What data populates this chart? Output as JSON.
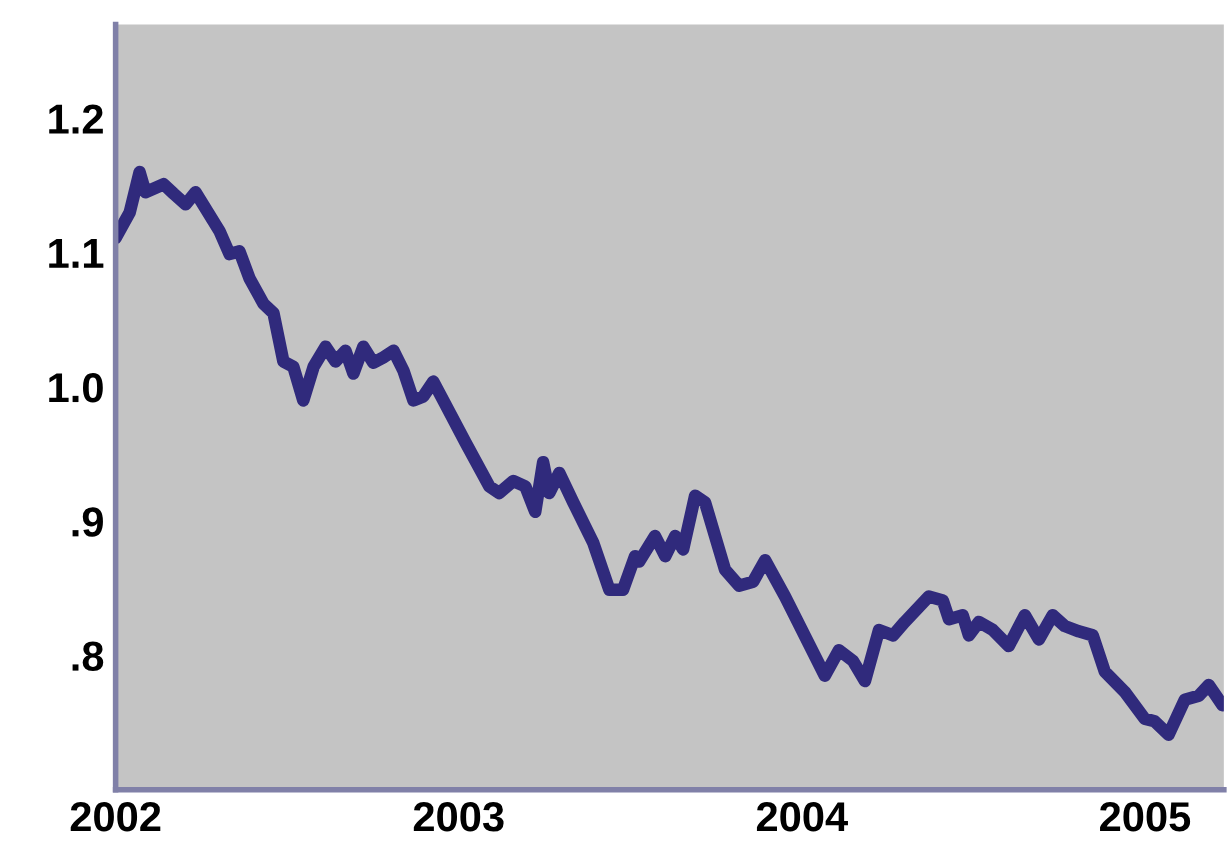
{
  "chart_data": {
    "type": "line",
    "x": [
      2002.0,
      2002.041,
      2002.07,
      2002.087,
      2002.14,
      2002.169,
      2002.204,
      2002.233,
      2002.303,
      2002.332,
      2002.361,
      2002.39,
      2002.431,
      2002.46,
      2002.489,
      2002.518,
      2002.547,
      2002.577,
      2002.612,
      2002.641,
      2002.67,
      2002.693,
      2002.722,
      2002.751,
      2002.78,
      2002.81,
      2002.839,
      2002.868,
      2002.897,
      2002.926,
      2002.955,
      2003.019,
      2003.089,
      2003.118,
      2003.159,
      2003.194,
      2003.223,
      2003.246,
      2003.264,
      2003.293,
      2003.334,
      2003.392,
      2003.439,
      2003.479,
      2003.514,
      2003.526,
      2003.572,
      2003.602,
      2003.631,
      2003.654,
      2003.689,
      2003.718,
      2003.776,
      2003.817,
      2003.858,
      2003.893,
      2003.951,
      2004.067,
      2004.108,
      2004.149,
      2004.184,
      2004.225,
      2004.266,
      2004.3,
      2004.37,
      2004.411,
      2004.429,
      2004.469,
      2004.487,
      2004.516,
      2004.557,
      2004.603,
      2004.65,
      2004.691,
      2004.731,
      2004.766,
      2004.807,
      2004.848,
      2004.883,
      2004.941,
      2004.999,
      2005.028,
      2005.069,
      2005.116,
      2005.157,
      2005.186,
      2005.226
    ],
    "series": [
      {
        "color": "#302a7c",
        "values": [
          1.111,
          1.13,
          1.16,
          1.145,
          1.151,
          1.144,
          1.136,
          1.145,
          1.116,
          1.099,
          1.101,
          1.081,
          1.062,
          1.055,
          1.019,
          1.015,
          0.99,
          1.015,
          1.03,
          1.019,
          1.027,
          1.01,
          1.03,
          1.018,
          1.022,
          1.027,
          1.012,
          0.99,
          0.993,
          1.004,
          0.99,
          0.959,
          0.926,
          0.921,
          0.93,
          0.926,
          0.907,
          0.944,
          0.921,
          0.936,
          0.914,
          0.884,
          0.849,
          0.849,
          0.874,
          0.87,
          0.889,
          0.874,
          0.889,
          0.879,
          0.919,
          0.914,
          0.864,
          0.852,
          0.855,
          0.871,
          0.844,
          0.785,
          0.804,
          0.796,
          0.781,
          0.819,
          0.815,
          0.825,
          0.844,
          0.841,
          0.827,
          0.83,
          0.815,
          0.825,
          0.819,
          0.807,
          0.83,
          0.812,
          0.83,
          0.822,
          0.818,
          0.815,
          0.788,
          0.773,
          0.753,
          0.751,
          0.741,
          0.767,
          0.77,
          0.778,
          0.763
        ]
      }
    ],
    "xlim": [
      2002,
      2005.23
    ],
    "ylim": [
      0.7,
      1.27
    ],
    "xticks": [
      2002,
      2003,
      2004,
      2005
    ],
    "yticks": [
      {
        "value": 0.8,
        "label": ".8"
      },
      {
        "value": 0.9,
        "label": ".9"
      },
      {
        "value": 1.0,
        "label": "1.0"
      },
      {
        "value": 1.1,
        "label": "1.1"
      },
      {
        "value": 1.2,
        "label": "1.2"
      }
    ],
    "grid": false,
    "legend": false,
    "marker": "none",
    "line_style": "solid"
  }
}
